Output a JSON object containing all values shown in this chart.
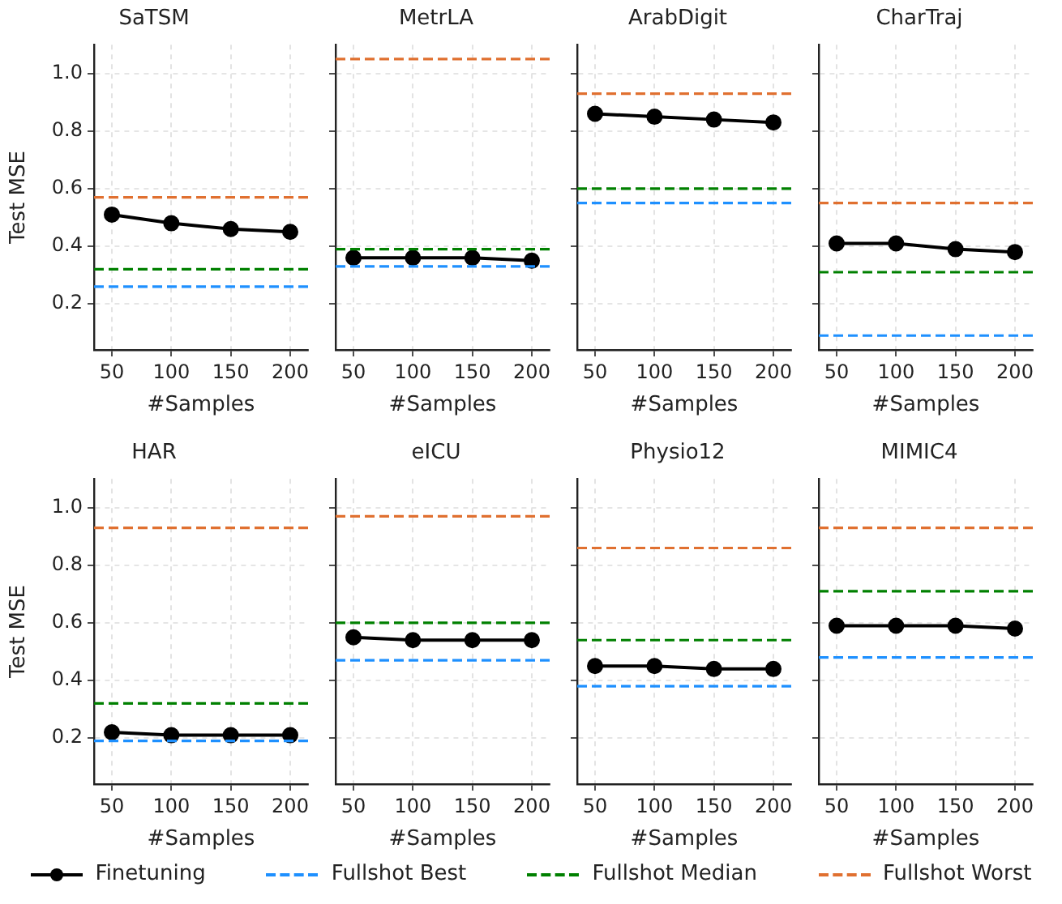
{
  "chart_data": [
    {
      "type": "line",
      "title": "SaTSM",
      "xlabel": "#Samples",
      "ylabel": "Test MSE",
      "x": [
        50,
        100,
        150,
        200
      ],
      "xlim": [
        35,
        215
      ],
      "xticks": [
        50,
        100,
        150,
        200
      ],
      "ylim": [
        0.04,
        1.1
      ],
      "yticks": [
        0.2,
        0.4,
        0.6,
        0.8,
        {
          "value": 1,
          "label": "1.0"
        }
      ],
      "grid": true,
      "marker": "circle",
      "legend": "bottom",
      "series": [
        {
          "name": "Finetuning",
          "color": "#000000",
          "values": [
            0.51,
            0.48,
            0.46,
            0.45
          ]
        }
      ],
      "ref_lines": [
        {
          "axis": "y",
          "value": 0.26,
          "label": "Fullshot Best",
          "color": "#1e90ff",
          "line_style": "dashed"
        },
        {
          "axis": "y",
          "value": 0.32,
          "label": "Fullshot Median",
          "color": "#008000",
          "line_style": "dashed"
        },
        {
          "axis": "y",
          "value": 0.57,
          "label": "Fullshot Worst",
          "color": "#e07030",
          "line_style": "dashed"
        }
      ]
    },
    {
      "type": "line",
      "title": "MetrLA",
      "xlabel": "#Samples",
      "x": [
        50,
        100,
        150,
        200
      ],
      "xlim": [
        35,
        215
      ],
      "xticks": [
        50,
        100,
        150,
        200
      ],
      "ylim": [
        0.04,
        1.1
      ],
      "yticks": [
        {
          "value": 0.2,
          "label": null
        },
        {
          "value": 0.4,
          "label": null
        },
        {
          "value": 0.6,
          "label": null
        },
        {
          "value": 0.8,
          "label": null
        },
        {
          "value": 1,
          "label": null
        }
      ],
      "tick_labels": "x",
      "grid": true,
      "marker": "circle",
      "series": [
        {
          "color": "#000000",
          "values": [
            0.36,
            0.36,
            0.36,
            0.35
          ]
        }
      ],
      "ref_lines": [
        {
          "axis": "y",
          "value": 0.33,
          "color": "#1e90ff",
          "line_style": "dashed"
        },
        {
          "axis": "y",
          "value": 0.39,
          "color": "#008000",
          "line_style": "dashed"
        },
        {
          "axis": "y",
          "value": 1.05,
          "color": "#e07030",
          "line_style": "dashed"
        }
      ]
    },
    {
      "type": "line",
      "title": "ArabDigit",
      "xlabel": "#Samples",
      "x": [
        50,
        100,
        150,
        200
      ],
      "xlim": [
        35,
        215
      ],
      "xticks": [
        50,
        100,
        150,
        200
      ],
      "ylim": [
        0.04,
        1.1
      ],
      "yticks": [
        {
          "value": 0.2,
          "label": null
        },
        {
          "value": 0.4,
          "label": null
        },
        {
          "value": 0.6,
          "label": null
        },
        {
          "value": 0.8,
          "label": null
        },
        {
          "value": 1,
          "label": null
        }
      ],
      "tick_labels": "x",
      "grid": true,
      "marker": "circle",
      "series": [
        {
          "color": "#000000",
          "values": [
            0.86,
            0.85,
            0.84,
            0.83
          ]
        }
      ],
      "ref_lines": [
        {
          "axis": "y",
          "value": 0.55,
          "color": "#1e90ff",
          "line_style": "dashed"
        },
        {
          "axis": "y",
          "value": 0.6,
          "color": "#008000",
          "line_style": "dashed"
        },
        {
          "axis": "y",
          "value": 0.93,
          "color": "#e07030",
          "line_style": "dashed"
        }
      ]
    },
    {
      "type": "line",
      "title": "CharTraj",
      "xlabel": "#Samples",
      "x": [
        50,
        100,
        150,
        200
      ],
      "xlim": [
        35,
        215
      ],
      "xticks": [
        50,
        100,
        150,
        200
      ],
      "ylim": [
        0.04,
        1.1
      ],
      "yticks": [
        {
          "value": 0.2,
          "label": null
        },
        {
          "value": 0.4,
          "label": null
        },
        {
          "value": 0.6,
          "label": null
        },
        {
          "value": 0.8,
          "label": null
        },
        {
          "value": 1,
          "label": null
        }
      ],
      "tick_labels": "x",
      "grid": true,
      "marker": "circle",
      "series": [
        {
          "color": "#000000",
          "values": [
            0.41,
            0.41,
            0.39,
            0.38
          ]
        }
      ],
      "ref_lines": [
        {
          "axis": "y",
          "value": 0.09,
          "color": "#1e90ff",
          "line_style": "dashed"
        },
        {
          "axis": "y",
          "value": 0.31,
          "color": "#008000",
          "line_style": "dashed"
        },
        {
          "axis": "y",
          "value": 0.55,
          "color": "#e07030",
          "line_style": "dashed"
        }
      ]
    },
    {
      "type": "line",
      "title": "HAR",
      "xlabel": "#Samples",
      "ylabel": "Test MSE",
      "x": [
        50,
        100,
        150,
        200
      ],
      "xlim": [
        35,
        215
      ],
      "xticks": [
        50,
        100,
        150,
        200
      ],
      "ylim": [
        0.04,
        1.1
      ],
      "yticks": [
        0.2,
        0.4,
        0.6,
        0.8,
        {
          "value": 1,
          "label": "1.0"
        }
      ],
      "grid": true,
      "marker": "circle",
      "series": [
        {
          "color": "#000000",
          "values": [
            0.22,
            0.21,
            0.21,
            0.21
          ]
        }
      ],
      "ref_lines": [
        {
          "axis": "y",
          "value": 0.19,
          "color": "#1e90ff",
          "line_style": "dashed"
        },
        {
          "axis": "y",
          "value": 0.32,
          "color": "#008000",
          "line_style": "dashed"
        },
        {
          "axis": "y",
          "value": 0.93,
          "color": "#e07030",
          "line_style": "dashed"
        }
      ]
    },
    {
      "type": "line",
      "title": "eICU",
      "xlabel": "#Samples",
      "x": [
        50,
        100,
        150,
        200
      ],
      "xlim": [
        35,
        215
      ],
      "xticks": [
        50,
        100,
        150,
        200
      ],
      "ylim": [
        0.04,
        1.1
      ],
      "yticks": [
        {
          "value": 0.2,
          "label": null
        },
        {
          "value": 0.4,
          "label": null
        },
        {
          "value": 0.6,
          "label": null
        },
        {
          "value": 0.8,
          "label": null
        },
        {
          "value": 1,
          "label": null
        }
      ],
      "tick_labels": "x",
      "grid": true,
      "marker": "circle",
      "series": [
        {
          "color": "#000000",
          "values": [
            0.55,
            0.54,
            0.54,
            0.54
          ]
        }
      ],
      "ref_lines": [
        {
          "axis": "y",
          "value": 0.47,
          "color": "#1e90ff",
          "line_style": "dashed"
        },
        {
          "axis": "y",
          "value": 0.6,
          "color": "#008000",
          "line_style": "dashed"
        },
        {
          "axis": "y",
          "value": 0.97,
          "color": "#e07030",
          "line_style": "dashed"
        }
      ]
    },
    {
      "type": "line",
      "title": "Physio12",
      "xlabel": "#Samples",
      "x": [
        50,
        100,
        150,
        200
      ],
      "xlim": [
        35,
        215
      ],
      "xticks": [
        50,
        100,
        150,
        200
      ],
      "ylim": [
        0.04,
        1.1
      ],
      "yticks": [
        {
          "value": 0.2,
          "label": null
        },
        {
          "value": 0.4,
          "label": null
        },
        {
          "value": 0.6,
          "label": null
        },
        {
          "value": 0.8,
          "label": null
        },
        {
          "value": 1,
          "label": null
        }
      ],
      "tick_labels": "x",
      "grid": true,
      "marker": "circle",
      "series": [
        {
          "color": "#000000",
          "values": [
            0.45,
            0.45,
            0.44,
            0.44
          ]
        }
      ],
      "ref_lines": [
        {
          "axis": "y",
          "value": 0.38,
          "color": "#1e90ff",
          "line_style": "dashed"
        },
        {
          "axis": "y",
          "value": 0.54,
          "color": "#008000",
          "line_style": "dashed"
        },
        {
          "axis": "y",
          "value": 0.86,
          "color": "#e07030",
          "line_style": "dashed"
        }
      ]
    },
    {
      "type": "line",
      "title": "MIMIC4",
      "xlabel": "#Samples",
      "x": [
        50,
        100,
        150,
        200
      ],
      "xlim": [
        35,
        215
      ],
      "xticks": [
        50,
        100,
        150,
        200
      ],
      "ylim": [
        0.04,
        1.1
      ],
      "yticks": [
        {
          "value": 0.2,
          "label": null
        },
        {
          "value": 0.4,
          "label": null
        },
        {
          "value": 0.6,
          "label": null
        },
        {
          "value": 0.8,
          "label": null
        },
        {
          "value": 1,
          "label": null
        }
      ],
      "tick_labels": "x",
      "grid": true,
      "marker": "circle",
      "series": [
        {
          "color": "#000000",
          "values": [
            0.59,
            0.59,
            0.59,
            0.58
          ]
        }
      ],
      "ref_lines": [
        {
          "axis": "y",
          "value": 0.48,
          "color": "#1e90ff",
          "line_style": "dashed"
        },
        {
          "axis": "y",
          "value": 0.71,
          "color": "#008000",
          "line_style": "dashed"
        },
        {
          "axis": "y",
          "value": 0.93,
          "color": "#e07030",
          "line_style": "dashed"
        }
      ]
    }
  ]
}
